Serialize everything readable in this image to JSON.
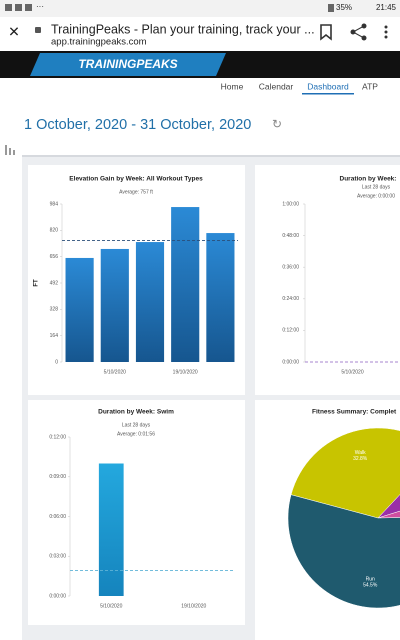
{
  "status_bar": {
    "battery": "35%",
    "time": "21:45"
  },
  "browser": {
    "title": "TrainingPeaks - Plan your training, track your ...",
    "url": "app.trainingpeaks.com"
  },
  "header": {
    "logo": "TRAININGPEAKS"
  },
  "nav": {
    "items": [
      "Home",
      "Calendar",
      "Dashboard",
      "ATP"
    ],
    "active": 2
  },
  "date_range": "1 October, 2020 - 31 October, 2020",
  "charts": [
    {
      "type": "bar",
      "title": "Elevation Gain by Week: All Workout Types",
      "subtitles": [
        "Average: 757 ft"
      ],
      "y_label": "FT",
      "categories": [
        null,
        "5/10/2020",
        null,
        "19/10/2020",
        null
      ],
      "values": [
        648,
        704,
        747,
        965,
        803
      ],
      "average": 757,
      "average_color": "#2a4f7a",
      "ylim": [
        0,
        984
      ],
      "yticks": [
        0,
        164,
        328,
        492,
        656,
        820,
        984
      ],
      "color": "#1f6fb5"
    },
    {
      "type": "bar",
      "title": "Duration by Week:",
      "subtitles": [
        "Last 28 days",
        "Average: 0:00:00"
      ],
      "categories": [
        "5/10/2020"
      ],
      "values": [
        0
      ],
      "average": 0,
      "average_color": "#8a5fc0",
      "ylim": [
        0,
        60
      ],
      "yticks": [
        {
          "value": 0,
          "label": "0:00:00"
        },
        {
          "value": 12,
          "label": "0:12:00"
        },
        {
          "value": 24,
          "label": "0:24:00"
        },
        {
          "value": 36,
          "label": "0:36:00"
        },
        {
          "value": 48,
          "label": "0:48:00"
        },
        {
          "value": 60,
          "label": "1:00:00"
        }
      ],
      "color": "#8a5fc0"
    },
    {
      "type": "bar",
      "title": "Duration by Week: Swim",
      "subtitles": [
        "Last 28 days",
        "Average: 0:01:56"
      ],
      "categories": [
        "5/10/2020",
        "19/10/2020"
      ],
      "values": [
        10,
        0
      ],
      "average": 1.93,
      "average_color": "#5fb3d6",
      "ylim": [
        0,
        12
      ],
      "yticks": [
        {
          "value": 0,
          "label": "0:00:00"
        },
        {
          "value": 3,
          "label": "0:03:00"
        },
        {
          "value": 6,
          "label": "0:06:00"
        },
        {
          "value": 9,
          "label": "0:09:00"
        },
        {
          "value": 12,
          "label": "0:12:00"
        }
      ],
      "color": "#1a9ad2"
    },
    {
      "type": "pie",
      "title": "Fitness Summary: Complet",
      "categories": [
        "Walk",
        null,
        null,
        "Run"
      ],
      "values": [
        32.8,
        8.2,
        4.5,
        54.5
      ],
      "value_labels": [
        "32.8%",
        null,
        null,
        "54.5%"
      ],
      "colors": [
        "#c8c400",
        "#9a2fa8",
        "#d04ea0",
        "#1f5a6e"
      ]
    }
  ]
}
